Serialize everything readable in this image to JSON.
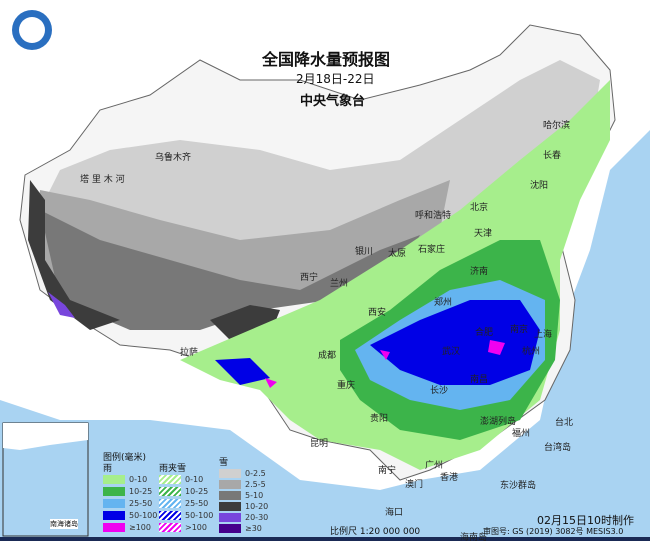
{
  "header": {
    "title": "全国降水量预报图",
    "date_range": "2月18日-22日",
    "issuer": "中央气象台"
  },
  "colors": {
    "sea": "#a9d3f2",
    "land": "#ffffff",
    "rain_0_10": "#a6ee8c",
    "rain_10_25": "#3cb44a",
    "rain_25_50": "#64b4f0",
    "rain_50_100": "#0000e6",
    "rain_100": "#f000f0",
    "snow_0_2_5": "#d0d0d0",
    "snow_2_5_5": "#a8a8a8",
    "snow_5_10": "#787878",
    "snow_10_20": "#3c3c3c",
    "snow_20_30": "#7846dc",
    "snow_30": "#46008c"
  },
  "cities": [
    {
      "name": "乌鲁木齐"
    },
    {
      "name": "哈尔滨"
    },
    {
      "name": "长春"
    },
    {
      "name": "沈阳"
    },
    {
      "name": "北京"
    },
    {
      "name": "天津"
    },
    {
      "name": "呼和浩特"
    },
    {
      "name": "石家庄"
    },
    {
      "name": "太原"
    },
    {
      "name": "银川"
    },
    {
      "name": "济南"
    },
    {
      "name": "西宁"
    },
    {
      "name": "兰州"
    },
    {
      "name": "郑州"
    },
    {
      "name": "西安"
    },
    {
      "name": "拉萨"
    },
    {
      "name": "成都"
    },
    {
      "name": "重庆"
    },
    {
      "name": "武汉"
    },
    {
      "name": "合肥"
    },
    {
      "name": "南京"
    },
    {
      "name": "上海"
    },
    {
      "name": "杭州"
    },
    {
      "name": "长沙"
    },
    {
      "name": "南昌"
    },
    {
      "name": "贵阳"
    },
    {
      "name": "昆明"
    },
    {
      "name": "南宁"
    },
    {
      "name": "广州"
    },
    {
      "name": "澳门"
    },
    {
      "name": "香港"
    },
    {
      "name": "福州"
    },
    {
      "name": "台北"
    },
    {
      "name": "台湾岛"
    },
    {
      "name": "海口"
    },
    {
      "name": "澎湖列岛"
    },
    {
      "name": "东沙群岛"
    },
    {
      "name": "海南岛"
    },
    {
      "name": "塔 里 木 河"
    }
  ],
  "inset": {
    "label": "南海诸岛",
    "island": "海南岛"
  },
  "legend": {
    "title": "图例(毫米)",
    "rain": {
      "label": "雨",
      "items": [
        "0-10",
        "10-25",
        "25-50",
        "50-100",
        "≥100"
      ]
    },
    "sleet": {
      "label": "雨夹雪",
      "items": [
        "0-10",
        "10-25",
        "25-50",
        "50-100",
        ">100"
      ]
    },
    "snow": {
      "label": "雪",
      "items": [
        "0-2.5",
        "2.5-5",
        "5-10",
        "10-20",
        "20-30",
        "≥30"
      ]
    }
  },
  "footer": {
    "scale": "比例尺 1:20 000 000",
    "made": "02月15日10时制作",
    "approval": "审图号: GS (2019) 3082号 MESIS3.0"
  }
}
